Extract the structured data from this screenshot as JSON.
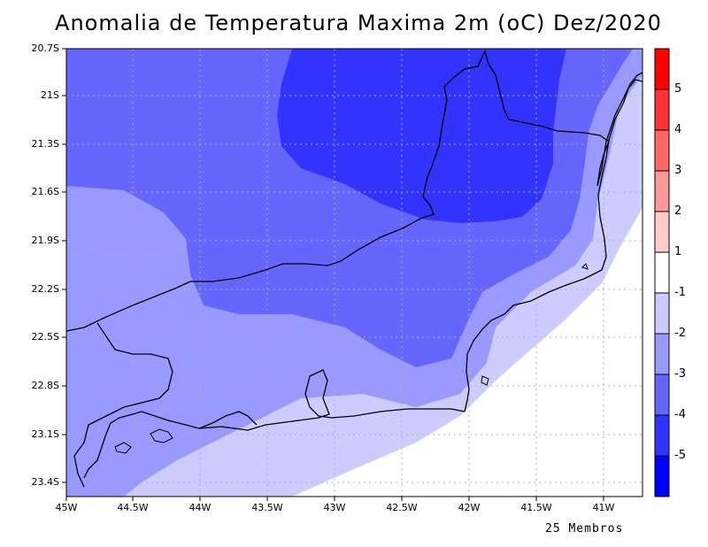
{
  "map": {
    "title": "Anomalia de Temperatura Maxima 2m (oC) Dez/2020",
    "footer": "25 Membros",
    "lat_labels": [
      "20.7S",
      "21S",
      "21.3S",
      "21.6S",
      "21.9S",
      "22.2S",
      "22.5S",
      "22.8S",
      "23.1S",
      "23.4S"
    ],
    "lon_labels": [
      "45W",
      "44.5W",
      "44W",
      "43.5W",
      "43W",
      "42.5W",
      "42W",
      "41.5W",
      "41W"
    ],
    "colorbar": {
      "labels": [
        "5",
        "4",
        "3",
        "2",
        "1",
        "-1",
        "-2",
        "-3",
        "-4",
        "-5"
      ],
      "colors": [
        "#ff0000",
        "#ff3333",
        "#ff6666",
        "#ff9999",
        "#ffcccc",
        "#ffffff",
        "#ccccff",
        "#9999ff",
        "#6666ff",
        "#3333ff",
        "#0000ff"
      ]
    },
    "fill_colors": {
      "lightest": "#ccccff",
      "light": "#9999ff",
      "medium": "#6666ff",
      "dark": "#3333ff"
    }
  }
}
